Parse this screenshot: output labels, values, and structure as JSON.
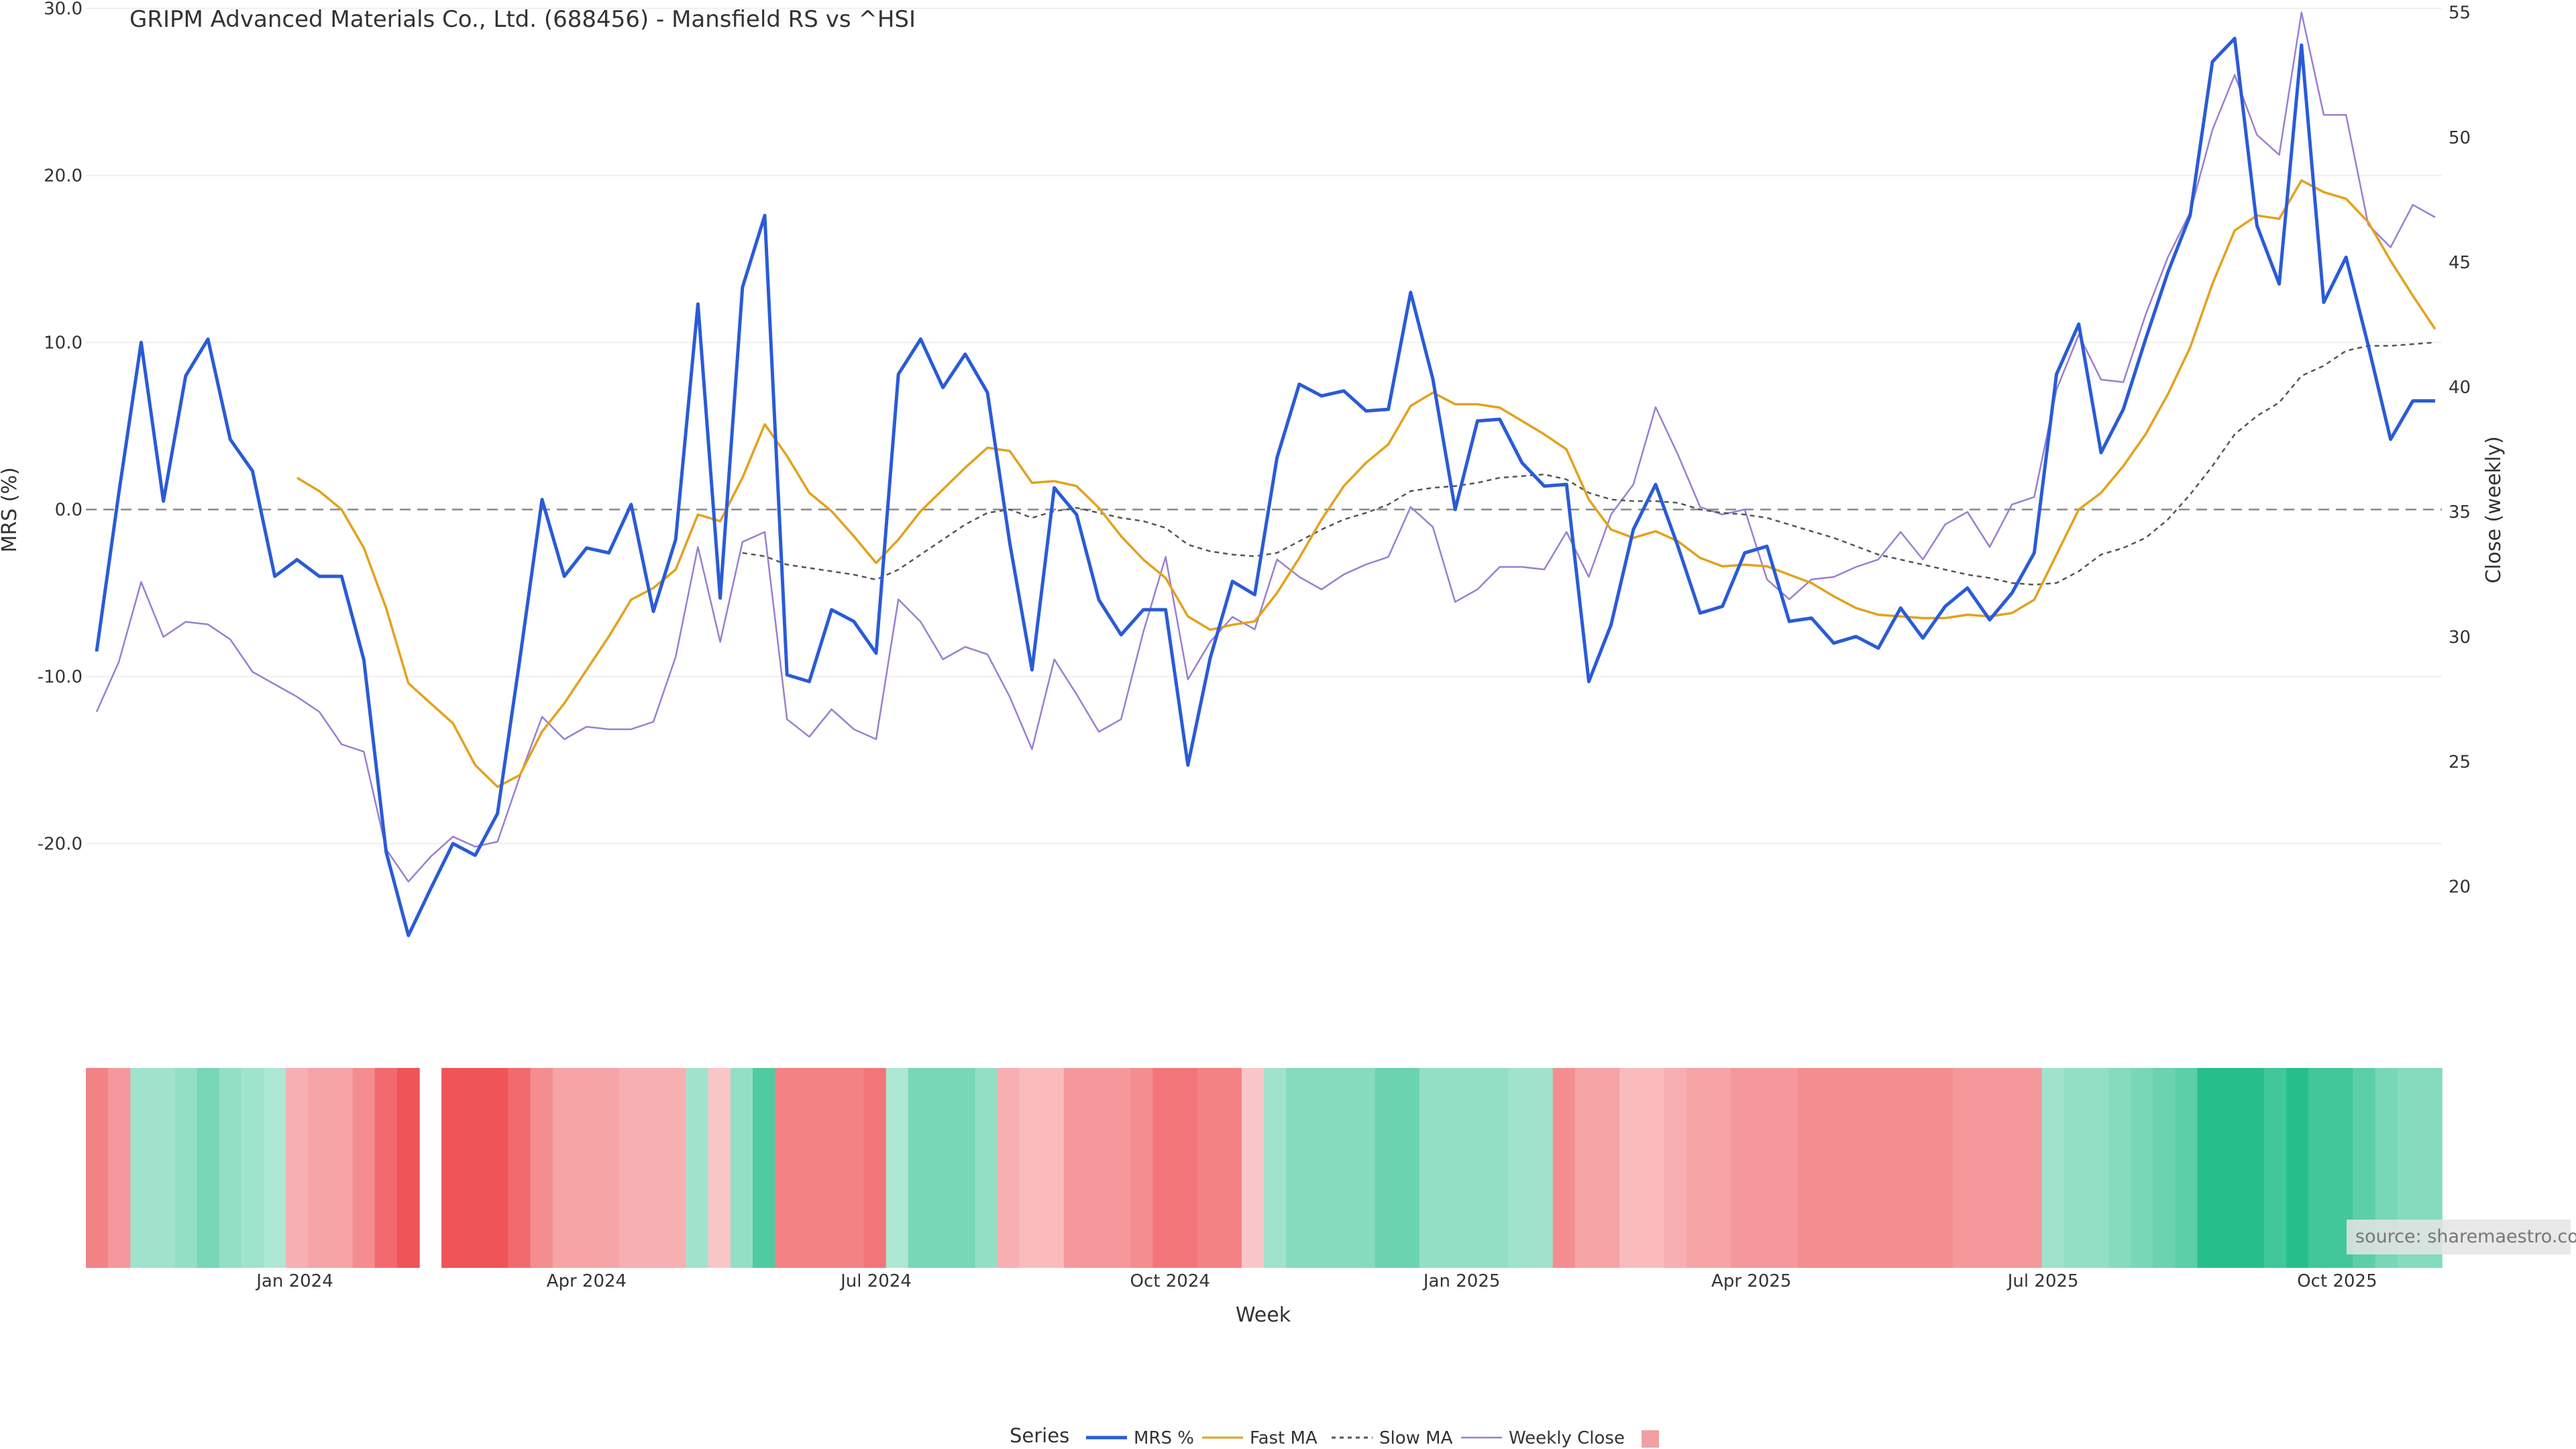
{
  "chart_data": {
    "type": "line",
    "title": "GRIPM Advanced Materials Co., Ltd. (688456) - Mansfield RS vs ^HSI",
    "xlabel": "Week",
    "ylabel": "MRS (%)",
    "y2label": "Close (weekly)",
    "ylim": [
      -30.5,
      30.5
    ],
    "y_ticks": [
      "30.0",
      "20.0",
      "10.0",
      "0.0",
      "-10.0",
      "-20.0"
    ],
    "y_tick_values": [
      30,
      20,
      10,
      0,
      -10,
      -20
    ],
    "y2lim": [
      14.7,
      55.5
    ],
    "y2_ticks": [
      "55",
      "50",
      "45",
      "40",
      "35",
      "30",
      "25",
      "20"
    ],
    "y2_tick_values": [
      55,
      50,
      45,
      40,
      35,
      30,
      25,
      20
    ],
    "x_ticks": [
      "Jan 2024",
      "Apr 2024",
      "Jul 2024",
      "Oct 2024",
      "Jan 2025",
      "Apr 2025",
      "Jul 2025",
      "Oct 2025"
    ],
    "x_tick_weeks": [
      8.9,
      22,
      35,
      48.2,
      61.3,
      74.3,
      87.4,
      100.6
    ],
    "legend_title": "Series",
    "legend_placement": "bottom-center",
    "source_note": "source: sharemaestro.com",
    "colors": {
      "mrs": "#2a5bd7",
      "fast_ma": "#e3a11d",
      "slow_ma": "#555555",
      "weekly_close": "#9a7fd1",
      "zero_line": "#888888",
      "heat_pos": "#26bf8c",
      "heat_neg": "#ef5458"
    },
    "series": [
      {
        "name": "MRS %",
        "values": [
          -8.5,
          1,
          10,
          0.5,
          8,
          10.2,
          4.2,
          2.3,
          -4,
          -3,
          -4,
          -4,
          -9,
          -20.5,
          -25.5,
          -22.7,
          -20,
          -20.7,
          -18.2,
          -9,
          0.6,
          -4,
          -2.3,
          -2.6,
          0.3,
          -6.1,
          -1.8,
          12.3,
          -5.3,
          13.3,
          17.6,
          -9.9,
          -10.3,
          -6,
          -6.7,
          -8.6,
          8.1,
          10.2,
          7.3,
          9.3,
          7,
          -2,
          -9.6,
          1.3,
          -0.3,
          -5.4,
          -7.5,
          -6,
          -6,
          -15.3,
          -8.9,
          -4.3,
          -5.1,
          3.1,
          7.5,
          6.8,
          7.1,
          5.9,
          6,
          13,
          7.8,
          0,
          5.3,
          5.4,
          2.8,
          1.4,
          1.5,
          -10.3,
          -6.9,
          -1.2,
          1.5,
          -2.2,
          -6.2,
          -5.8,
          -2.6,
          -2.2,
          -6.7,
          -6.5,
          -8,
          -7.6,
          -8.3,
          -5.9,
          -7.7,
          -5.8,
          -4.7,
          -6.6,
          -5,
          -2.6,
          8.1,
          11.1,
          3.4,
          6,
          10.2,
          14.2,
          17.6,
          26.8,
          28.2,
          17,
          13.5,
          27.8,
          12.4,
          15.1,
          9.8,
          4.2,
          6.5,
          6.5
        ]
      },
      {
        "name": "Fast MA",
        "values": [
          null,
          null,
          null,
          null,
          null,
          null,
          null,
          null,
          null,
          1.9,
          1.1,
          0,
          -2.3,
          -5.9,
          -10.4,
          -11.6,
          -12.8,
          -15.3,
          -16.6,
          -15.9,
          -13.3,
          -11.6,
          -9.6,
          -7.6,
          -5.4,
          -4.7,
          -3.6,
          -0.3,
          -0.7,
          1.9,
          5.1,
          3.2,
          1,
          -0.1,
          -1.6,
          -3.2,
          -1.8,
          -0.1,
          1.2,
          2.5,
          3.7,
          3.5,
          1.6,
          1.7,
          1.4,
          0.1,
          -1.6,
          -3,
          -4.1,
          -6.4,
          -7.2,
          -6.9,
          -6.7,
          -5,
          -2.9,
          -0.6,
          1.4,
          2.8,
          3.9,
          6.2,
          7,
          6.3,
          6.3,
          6.1,
          5.3,
          4.5,
          3.6,
          0.6,
          -1.2,
          -1.7,
          -1.3,
          -1.9,
          -2.9,
          -3.4,
          -3.3,
          -3.4,
          -3.9,
          -4.4,
          -5.2,
          -5.9,
          -6.3,
          -6.4,
          -6.5,
          -6.5,
          -6.3,
          -6.4,
          -6.2,
          -5.4,
          -2.7,
          0,
          1,
          2.6,
          4.5,
          6.9,
          9.7,
          13.5,
          16.7,
          17.6,
          17.4,
          19.7,
          19,
          18.6,
          17.2,
          14.9,
          12.8,
          10.8
        ]
      },
      {
        "name": "Slow MA",
        "values": [
          null,
          null,
          null,
          null,
          null,
          null,
          null,
          null,
          null,
          null,
          null,
          null,
          null,
          null,
          null,
          null,
          null,
          null,
          null,
          null,
          null,
          null,
          null,
          null,
          null,
          null,
          null,
          null,
          null,
          -2.6,
          -2.8,
          -3.3,
          -3.5,
          -3.7,
          -3.9,
          -4.2,
          -3.6,
          -2.7,
          -1.8,
          -0.9,
          -0.2,
          0,
          -0.5,
          -0.1,
          0.1,
          -0.2,
          -0.5,
          -0.7,
          -1.1,
          -2.1,
          -2.5,
          -2.7,
          -2.8,
          -2.6,
          -1.9,
          -1.2,
          -0.6,
          -0.2,
          0.3,
          1.1,
          1.3,
          1.4,
          1.6,
          1.9,
          2,
          2.1,
          1.8,
          1,
          0.6,
          0.5,
          0.5,
          0.4,
          0,
          -0.2,
          -0.3,
          -0.5,
          -0.9,
          -1.3,
          -1.7,
          -2.2,
          -2.7,
          -3,
          -3.3,
          -3.6,
          -3.9,
          -4.1,
          -4.4,
          -4.5,
          -4.4,
          -3.7,
          -2.7,
          -2.3,
          -1.7,
          -0.6,
          0.9,
          2.6,
          4.5,
          5.6,
          6.4,
          8,
          8.6,
          9.5,
          9.8,
          9.8,
          9.9,
          10
        ]
      },
      {
        "name": "Weekly Close",
        "axis": "right",
        "values": [
          27,
          29,
          32.2,
          30,
          30.6,
          30.5,
          29.9,
          28.6,
          28.1,
          27.6,
          27,
          25.7,
          25.4,
          21.5,
          20.2,
          21.2,
          22,
          21.6,
          21.8,
          24.4,
          26.8,
          25.9,
          26.4,
          26.3,
          26.3,
          26.6,
          29.2,
          33.6,
          29.8,
          33.8,
          34.2,
          26.7,
          26,
          27.1,
          26.3,
          25.9,
          31.5,
          30.6,
          29.1,
          29.6,
          29.3,
          27.6,
          25.5,
          29.1,
          27.7,
          26.2,
          26.7,
          30.2,
          33.2,
          28.3,
          29.8,
          30.8,
          30.3,
          33.1,
          32.4,
          31.9,
          32.5,
          32.9,
          33.2,
          35.2,
          34.4,
          31.4,
          31.9,
          32.8,
          32.8,
          32.7,
          34.2,
          32.4,
          34.9,
          36.1,
          39.2,
          37.3,
          35.2,
          34.9,
          35.1,
          32.3,
          31.5,
          32.3,
          32.4,
          32.8,
          33.1,
          34.2,
          33.1,
          34.5,
          35,
          33.6,
          35.3,
          35.6,
          39.9,
          42.1,
          40.3,
          40.2,
          42.9,
          45.2,
          47,
          50.3,
          52.5,
          50.1,
          49.3,
          55,
          50.9,
          50.9,
          46.5,
          45.6,
          47.3,
          46.8
        ]
      }
    ],
    "heatmap": {
      "description_free": true,
      "values": [
        -4,
        -3,
        1.5,
        1.5,
        2,
        3,
        2,
        1.5,
        1,
        -2,
        -2.5,
        -2.5,
        -3.5,
        -5,
        -7,
        null,
        -7,
        -7,
        -7,
        -5,
        -3.5,
        -2.5,
        -2.5,
        -2.5,
        -2,
        -2,
        -2,
        1.5,
        -1,
        2,
        4.5,
        -4,
        -4,
        -4,
        -4,
        -4.5,
        1,
        3,
        3,
        3,
        2,
        -2,
        -1.5,
        -1.5,
        -3,
        -3,
        -3,
        -3.5,
        -4.5,
        -4.5,
        -4,
        -4,
        -1,
        1.5,
        2.5,
        2.5,
        2.5,
        2.5,
        3.5,
        3.5,
        2,
        2,
        2,
        2,
        1.5,
        1.5,
        -3.5,
        -2.5,
        -2.5,
        -1.5,
        -1.5,
        -2,
        -2.5,
        -2.5,
        -3,
        -3,
        -3,
        -3.5,
        -3.5,
        -3.5,
        -3.5,
        -3.5,
        -3.5,
        -3.5,
        -3,
        -3,
        -3,
        -3,
        1.5,
        2,
        2,
        2.5,
        3,
        3.5,
        4,
        6,
        6,
        6,
        5,
        6,
        5,
        5,
        4,
        3,
        2.5,
        2.5
      ]
    }
  }
}
